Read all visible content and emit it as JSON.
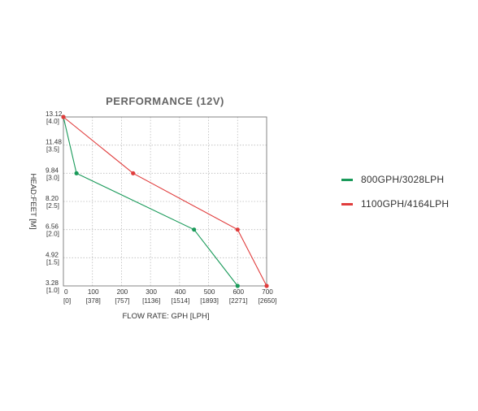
{
  "chart_data": {
    "type": "line",
    "title": "PERFORMANCE (12V)",
    "xlabel": "FLOW RATE: GPH [LPH]",
    "ylabel": "HEAD:FEET [M]",
    "xlim": [
      0,
      700
    ],
    "ylim": [
      3.28,
      13.12
    ],
    "x_ticks": [
      {
        "value": 0,
        "label": "0",
        "sub": "[0]"
      },
      {
        "value": 100,
        "label": "100",
        "sub": "[378]"
      },
      {
        "value": 200,
        "label": "200",
        "sub": "[757]"
      },
      {
        "value": 300,
        "label": "300",
        "sub": "[1136]"
      },
      {
        "value": 400,
        "label": "400",
        "sub": "[1514]"
      },
      {
        "value": 500,
        "label": "500",
        "sub": "[1893]"
      },
      {
        "value": 600,
        "label": "600",
        "sub": "[2271]"
      },
      {
        "value": 700,
        "label": "700",
        "sub": "[2650]"
      }
    ],
    "y_ticks": [
      {
        "value": 13.12,
        "label": "13.12",
        "sub": "[4.0]"
      },
      {
        "value": 11.48,
        "label": "11.48",
        "sub": "[3.5]"
      },
      {
        "value": 9.84,
        "label": "9.84",
        "sub": "[3.0]"
      },
      {
        "value": 8.2,
        "label": "8.20",
        "sub": "[2.5]"
      },
      {
        "value": 6.56,
        "label": "6.56",
        "sub": "[2.0]"
      },
      {
        "value": 4.92,
        "label": "4.92",
        "sub": "[1.5]"
      },
      {
        "value": 3.28,
        "label": "3.28",
        "sub": "[1.0]"
      }
    ],
    "grid": true,
    "legend_position": "right",
    "series": [
      {
        "name": "800GPH/3028LPH",
        "color": "#1a9a5a",
        "points": [
          [
            0,
            13.12
          ],
          [
            45,
            9.84
          ],
          [
            450,
            6.56
          ],
          [
            600,
            3.28
          ]
        ]
      },
      {
        "name": "1100GPH/4164LPH",
        "color": "#e03c3c",
        "points": [
          [
            0,
            13.12
          ],
          [
            240,
            9.84
          ],
          [
            600,
            6.56
          ],
          [
            700,
            3.28
          ]
        ]
      }
    ]
  }
}
